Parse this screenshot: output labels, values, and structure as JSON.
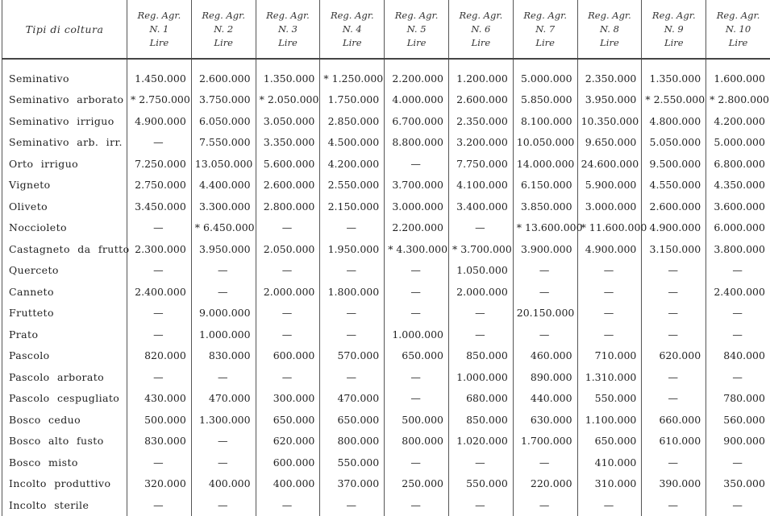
{
  "header": {
    "first": "Tipi di coltura",
    "regions": [
      {
        "l1": "Reg. Agr.",
        "l2": "N. 1",
        "l3": "Lire"
      },
      {
        "l1": "Reg. Agr.",
        "l2": "N. 2",
        "l3": "Lire"
      },
      {
        "l1": "Reg. Agr.",
        "l2": "N. 3",
        "l3": "Lire"
      },
      {
        "l1": "Reg. Agr.",
        "l2": "N. 4",
        "l3": "Lire"
      },
      {
        "l1": "Reg. Agr.",
        "l2": "N. 5",
        "l3": "Lire"
      },
      {
        "l1": "Reg. Agr.",
        "l2": "N. 6",
        "l3": "Lire"
      },
      {
        "l1": "Reg. Agr.",
        "l2": "N. 7",
        "l3": "Lire"
      },
      {
        "l1": "Reg. Agr.",
        "l2": "N. 8",
        "l3": "Lire"
      },
      {
        "l1": "Reg. Agr.",
        "l2": "N. 9",
        "l3": "Lire"
      },
      {
        "l1": "Reg. Agr.",
        "l2": "N. 10",
        "l3": "Lire"
      }
    ]
  },
  "rows": [
    {
      "name": "Seminativo",
      "values": [
        "1.450.000",
        "2.600.000",
        "1.350.000",
        "* 1.250.000",
        "2.200.000",
        "1.200.000",
        "5.000.000",
        "2.350.000",
        "1.350.000",
        "1.600.000"
      ]
    },
    {
      "name": "Seminativo arborato",
      "values": [
        "* 2.750.000",
        "3.750.000",
        "* 2.050.000",
        "1.750.000",
        "4.000.000",
        "2.600.000",
        "5.850.000",
        "3.950.000",
        "* 2.550.000",
        "* 2.800.000"
      ]
    },
    {
      "name": "Seminativo irriguo",
      "values": [
        "4.900.000",
        "6.050.000",
        "3.050.000",
        "2.850.000",
        "6.700.000",
        "2.350.000",
        "8.100.000",
        "10.350.000",
        "4.800.000",
        "4.200.000"
      ]
    },
    {
      "name": "Seminativo arb. irr.",
      "values": [
        "—",
        "7.550.000",
        "3.350.000",
        "4.500.000",
        "8.800.000",
        "3.200.000",
        "10.050.000",
        "9.650.000",
        "5.050.000",
        "5.000.000"
      ]
    },
    {
      "name": "Orto irriguo",
      "values": [
        "7.250.000",
        "13.050.000",
        "5.600.000",
        "4.200.000",
        "—",
        "7.750.000",
        "14.000.000",
        "24.600.000",
        "9.500.000",
        "6.800.000"
      ]
    },
    {
      "name": "Vigneto",
      "values": [
        "2.750.000",
        "4.400.000",
        "2.600.000",
        "2.550.000",
        "3.700.000",
        "4.100.000",
        "6.150.000",
        "5.900.000",
        "4.550.000",
        "4.350.000"
      ]
    },
    {
      "name": "Oliveto",
      "values": [
        "3.450.000",
        "3.300.000",
        "2.800.000",
        "2.150.000",
        "3.000.000",
        "3.400.000",
        "3.850.000",
        "3.000.000",
        "2.600.000",
        "3.600.000"
      ]
    },
    {
      "name": "Noccioleto",
      "values": [
        "—",
        "* 6.450.000",
        "—",
        "—",
        "2.200.000",
        "—",
        "* 13.600.000",
        "* 11.600.000",
        "4.900.000",
        "6.000.000"
      ]
    },
    {
      "name": "Castagneto da frutto",
      "values": [
        "2.300.000",
        "3.950.000",
        "2.050.000",
        "1.950.000",
        "* 4.300.000",
        "* 3.700.000",
        "3.900.000",
        "4.900.000",
        "3.150.000",
        "3.800.000"
      ]
    },
    {
      "name": "Querceto",
      "values": [
        "—",
        "—",
        "—",
        "—",
        "—",
        "1.050.000",
        "—",
        "—",
        "—",
        "—"
      ]
    },
    {
      "name": "Canneto",
      "values": [
        "2.400.000",
        "—",
        "2.000.000",
        "1.800.000",
        "—",
        "2.000.000",
        "—",
        "—",
        "—",
        "2.400.000"
      ]
    },
    {
      "name": "Frutteto",
      "values": [
        "—",
        "9.000.000",
        "—",
        "—",
        "—",
        "—",
        "20.150.000",
        "—",
        "—",
        "—"
      ]
    },
    {
      "name": "Prato",
      "values": [
        "—",
        "1.000.000",
        "—",
        "—",
        "1.000.000",
        "—",
        "—",
        "—",
        "—",
        "—"
      ]
    },
    {
      "name": "Pascolo",
      "values": [
        "820.000",
        "830.000",
        "600.000",
        "570.000",
        "650.000",
        "850.000",
        "460.000",
        "710.000",
        "620.000",
        "840.000"
      ]
    },
    {
      "name": "Pascolo arborato",
      "values": [
        "—",
        "—",
        "—",
        "—",
        "—",
        "1.000.000",
        "890.000",
        "1.310.000",
        "—",
        "—"
      ]
    },
    {
      "name": "Pascolo cespugliato",
      "values": [
        "430.000",
        "470.000",
        "300.000",
        "470.000",
        "—",
        "680.000",
        "440.000",
        "550.000",
        "—",
        "780.000"
      ]
    },
    {
      "name": "Bosco ceduo",
      "values": [
        "500.000",
        "1.300.000",
        "650.000",
        "650.000",
        "500.000",
        "850.000",
        "630.000",
        "1.100.000",
        "660.000",
        "560.000"
      ]
    },
    {
      "name": "Bosco alto fusto",
      "values": [
        "830.000",
        "—",
        "620.000",
        "800.000",
        "800.000",
        "1.020.000",
        "1.700.000",
        "650.000",
        "610.000",
        "900.000"
      ]
    },
    {
      "name": "Bosco misto",
      "values": [
        "—",
        "—",
        "600.000",
        "550.000",
        "—",
        "—",
        "—",
        "410.000",
        "—",
        "—"
      ]
    },
    {
      "name": "Incolto produttivo",
      "values": [
        "320.000",
        "400.000",
        "400.000",
        "370.000",
        "250.000",
        "550.000",
        "220.000",
        "310.000",
        "390.000",
        "350.000"
      ]
    },
    {
      "name": "Incolto sterile",
      "values": [
        "—",
        "—",
        "—",
        "—",
        "—",
        "—",
        "—",
        "—",
        "—",
        "—"
      ]
    }
  ]
}
